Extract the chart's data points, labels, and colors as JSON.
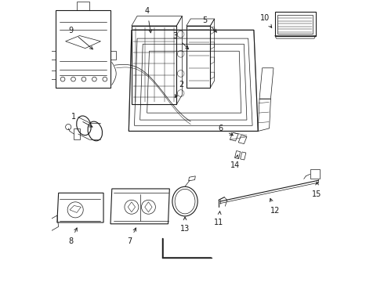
{
  "background_color": "#ffffff",
  "line_color": "#1a1a1a",
  "lw_main": 0.8,
  "lw_thin": 0.5,
  "label_fontsize": 7,
  "labels_info": [
    [
      9,
      0.155,
      0.82,
      0.09,
      0.875
    ],
    [
      4,
      0.355,
      0.875,
      0.345,
      0.935
    ],
    [
      3,
      0.495,
      0.82,
      0.46,
      0.855
    ],
    [
      5,
      0.595,
      0.88,
      0.565,
      0.91
    ],
    [
      10,
      0.79,
      0.895,
      0.775,
      0.915
    ],
    [
      1,
      0.155,
      0.545,
      0.105,
      0.572
    ],
    [
      2,
      0.435,
      0.645,
      0.45,
      0.675
    ],
    [
      6,
      0.655,
      0.515,
      0.625,
      0.532
    ],
    [
      14,
      0.665,
      0.46,
      0.66,
      0.44
    ],
    [
      8,
      0.095,
      0.2,
      0.08,
      0.168
    ],
    [
      7,
      0.305,
      0.2,
      0.29,
      0.168
    ],
    [
      13,
      0.475,
      0.24,
      0.475,
      0.215
    ],
    [
      11,
      0.6,
      0.26,
      0.598,
      0.238
    ],
    [
      12,
      0.775,
      0.305,
      0.785,
      0.278
    ],
    [
      15,
      0.945,
      0.365,
      0.945,
      0.338
    ]
  ]
}
